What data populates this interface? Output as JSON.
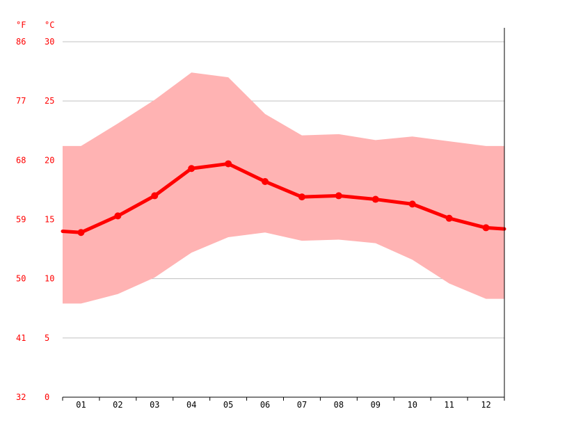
{
  "chart_data": {
    "type": "line",
    "categories": [
      "01",
      "02",
      "03",
      "04",
      "05",
      "06",
      "07",
      "08",
      "09",
      "10",
      "11",
      "12"
    ],
    "series": [
      {
        "values": [
          13.9,
          15.3,
          17.0,
          19.3,
          19.7,
          18.2,
          16.9,
          17.0,
          16.7,
          16.3,
          15.1,
          14.3
        ]
      }
    ],
    "band": {
      "upper": [
        21.2,
        23.1,
        25.1,
        27.4,
        27.0,
        23.9,
        22.1,
        22.2,
        21.7,
        22.0,
        21.6,
        21.2
      ],
      "lower": [
        7.9,
        8.7,
        10.1,
        12.2,
        13.5,
        13.9,
        13.2,
        13.3,
        13.0,
        11.6,
        9.6,
        8.3
      ]
    },
    "y_left_unit": "°F",
    "y_unit": "°C",
    "y_ticks_c": [
      "0",
      "5",
      "10",
      "15",
      "20",
      "25",
      "30"
    ],
    "y_ticks_f": [
      "32",
      "41",
      "50",
      "59",
      "68",
      "77",
      "86"
    ],
    "ylim": [
      0,
      30
    ],
    "grid": true,
    "colors": {
      "line": "#ff0000",
      "band": "#ffb3b3",
      "axis_labels": "#ff0000",
      "grid": "#c0c0c0"
    }
  }
}
